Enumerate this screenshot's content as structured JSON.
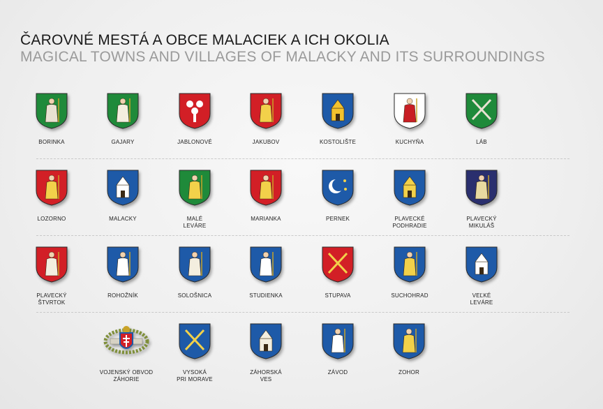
{
  "title": {
    "sk": "ČAROVNÉ MESTÁ A OBCE MALACIEK A ICH OKOLIA",
    "en": "MAGICAL TOWNS AND VILLAGES OF MALACKY AND ITS SURROUNDINGS"
  },
  "rows": [
    [
      {
        "name": [
          "BORINKA"
        ],
        "bg": "#1f8a3a",
        "icon": "bishop-with-staff-icon",
        "fig": "#e9e2d2"
      },
      {
        "name": [
          "GAJARY"
        ],
        "bg": "#1f8a3a",
        "icon": "bishop-icon",
        "fig": "#f3eedf"
      },
      {
        "name": [
          "JABLONOVÉ"
        ],
        "bg": "#d21f26",
        "icon": "apple-tree-icon",
        "fig": "#ffffff"
      },
      {
        "name": [
          "JAKUBOV"
        ],
        "bg": "#d21f26",
        "icon": "saint-figure-icon",
        "fig": "#f2d14a"
      },
      {
        "name": [
          "KOSTOLIŠTE"
        ],
        "bg": "#1e5aa8",
        "icon": "church-icon",
        "fig": "#f2c22e"
      },
      {
        "name": [
          "KUCHYŇA"
        ],
        "bg": "#ffffff",
        "icon": "bishop-red-robe-icon",
        "fig": "#c81e24"
      },
      {
        "name": [
          "LÁB"
        ],
        "bg": "#1f8a3a",
        "icon": "crossed-tools-icon",
        "fig": "#e9e2d2"
      }
    ],
    [
      {
        "name": [
          "LOZORNO"
        ],
        "bg": "#d21f26",
        "icon": "madonna-icon",
        "fig": "#f2d14a"
      },
      {
        "name": [
          "MALACKY"
        ],
        "bg": "#1e5aa8",
        "icon": "castle-with-boar-icon",
        "fig": "#ffffff"
      },
      {
        "name": [
          "MALÉ",
          "LEVÁRE"
        ],
        "bg": "#1f8a3a",
        "icon": "saint-yellow-icon",
        "fig": "#f2d14a"
      },
      {
        "name": [
          "MARIANKA"
        ],
        "bg": "#d21f26",
        "icon": "madonna-child-icon",
        "fig": "#f2d14a"
      },
      {
        "name": [
          "PERNEK"
        ],
        "bg": "#1e5aa8",
        "icon": "crescent-stars-icon",
        "fig": "#ffffff"
      },
      {
        "name": [
          "PLAVECKÉ",
          "PODHRADIE"
        ],
        "bg": "#1e5aa8",
        "icon": "tower-icon",
        "fig": "#f2d14a"
      },
      {
        "name": [
          "PLAVECKÝ",
          "MIKULÁŠ"
        ],
        "bg": "#2a2f6e",
        "icon": "ornate-shield-icon",
        "fig": "#e8d9a0"
      }
    ],
    [
      {
        "name": [
          "PLAVECKÝ",
          "ŠTVRTOK"
        ],
        "bg": "#d21f26",
        "icon": "madonna-lilies-icon",
        "fig": "#f3eedf"
      },
      {
        "name": [
          "ROHOŽNÍK"
        ],
        "bg": "#1e5aa8",
        "icon": "knight-icon",
        "fig": "#ffffff"
      },
      {
        "name": [
          "SOLOŠNICA"
        ],
        "bg": "#1e5aa8",
        "icon": "saint-on-ground-icon",
        "fig": "#f3eedf"
      },
      {
        "name": [
          "STUDIENKA"
        ],
        "bg": "#1e5aa8",
        "icon": "bear-with-banner-icon",
        "fig": "#ffffff"
      },
      {
        "name": [
          "STUPAVA"
        ],
        "bg": "#d21f26",
        "icon": "sword-diagonal-icon",
        "fig": "#f2d14a"
      },
      {
        "name": [
          "SUCHOHRAD"
        ],
        "bg": "#1e5aa8",
        "icon": "fisherman-icon",
        "fig": "#f2d14a"
      },
      {
        "name": [
          "VEĽKÉ",
          "LEVÁRE"
        ],
        "bg": "#1e5aa8",
        "icon": "church-towers-icon",
        "fig": "#ffffff"
      }
    ],
    [
      {
        "name": [
          "VOJENSKÝ OBVOD",
          "ZÁHORIE"
        ],
        "bg": "none",
        "icon": "military-emblem-icon",
        "fig": "#d21f26"
      },
      {
        "name": [
          "VYSOKÁ",
          "PRI MORAVE"
        ],
        "bg": "#1e5aa8",
        "icon": "crossed-swords-figure-icon",
        "fig": "#f2d14a"
      },
      {
        "name": [
          "ZÁHORSKÁ",
          "VES"
        ],
        "bg": "#1e5aa8",
        "icon": "church-landscape-icon",
        "fig": "#f3eedf"
      },
      {
        "name": [
          "ZÁVOD"
        ],
        "bg": "#1e5aa8",
        "icon": "archangel-icon",
        "fig": "#ffffff"
      },
      {
        "name": [
          "ZOHOR"
        ],
        "bg": "#1e5aa8",
        "icon": "anchor-figure-icon",
        "fig": "#f2d14a"
      }
    ]
  ]
}
